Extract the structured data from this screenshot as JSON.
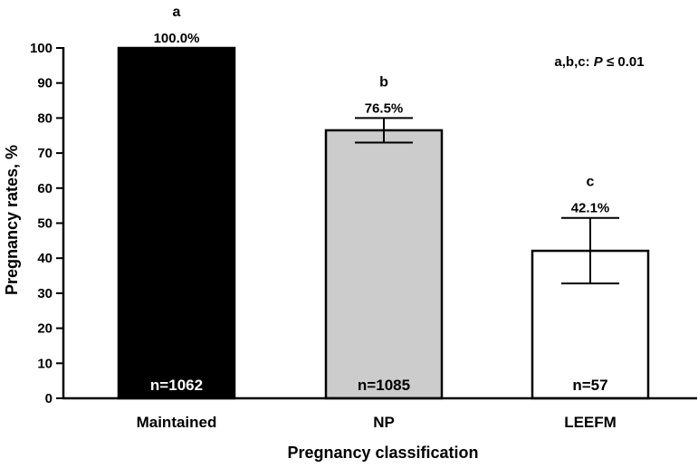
{
  "chart_data": {
    "type": "bar",
    "title": "",
    "xlabel": "Pregnancy classification",
    "ylabel": "Pregnancy rates, %",
    "ylim": [
      0,
      100
    ],
    "yticks": [
      0,
      10,
      20,
      30,
      40,
      50,
      60,
      70,
      80,
      90,
      100
    ],
    "ytick_labels": [
      "0",
      "10",
      "20",
      "30",
      "40",
      "50",
      "60",
      "70",
      "80",
      "90",
      "100"
    ],
    "categories": [
      "Maintained",
      "NP",
      "LEEFM"
    ],
    "values": [
      100.0,
      76.5,
      42.1
    ],
    "value_labels": [
      "100.0%",
      "76.5%",
      "42.1%"
    ],
    "error_low": [
      100.0,
      73.0,
      32.8
    ],
    "error_high": [
      100.0,
      80.0,
      51.5
    ],
    "significance_letters": [
      "a",
      "b",
      "c"
    ],
    "n_labels": [
      "n=1062",
      "n=1085",
      "n=57"
    ],
    "bar_colors": [
      "#000000",
      "#cccccc",
      "#ffffff"
    ],
    "n_label_colors": [
      "#ffffff",
      "#000000",
      "#000000"
    ],
    "has_error_bars": [
      false,
      true,
      true
    ],
    "annotation_prefix": "a,b,c: ",
    "annotation_p": "P",
    "annotation_suffix": " ≤ 0.01",
    "grid": false,
    "legend": "none"
  }
}
